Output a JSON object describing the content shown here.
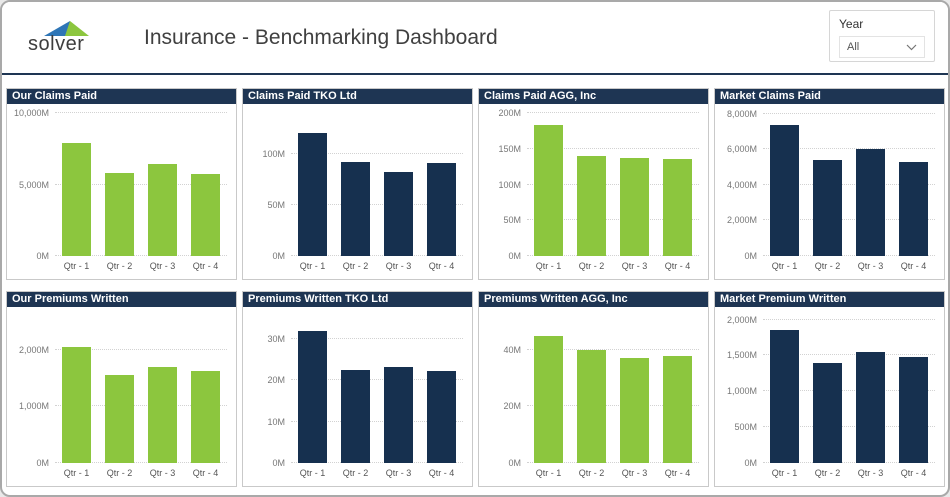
{
  "header": {
    "logo_text": "solver",
    "title": "Insurance - Benchmarking Dashboard",
    "filter": {
      "label": "Year",
      "value": "All"
    }
  },
  "colors": {
    "green": "#8cc63e",
    "navy": "#16304f",
    "header_navy": "#1e3553",
    "logo_blue": "#2e75b6",
    "logo_green": "#8cc63e"
  },
  "chart_data": [
    {
      "type": "bar",
      "title": "Our Claims Paid",
      "color": "green",
      "categories": [
        "Qtr - 1",
        "Qtr - 2",
        "Qtr - 3",
        "Qtr - 4"
      ],
      "values": [
        7900,
        5800,
        6400,
        5750
      ],
      "unit": "M",
      "ylim": [
        0,
        10000
      ],
      "ymax_plot": 10000,
      "grid": true,
      "legend": "none",
      "yticks": [
        {
          "v": 0,
          "label": "0M"
        },
        {
          "v": 5000,
          "label": "5,000M"
        },
        {
          "v": 10000,
          "label": "10,000M"
        }
      ]
    },
    {
      "type": "bar",
      "title": "Claims Paid TKO Ltd",
      "color": "navy",
      "categories": [
        "Qtr - 1",
        "Qtr - 2",
        "Qtr - 3",
        "Qtr - 4"
      ],
      "values": [
        120,
        92,
        82,
        91
      ],
      "unit": "M",
      "ylim": [
        0,
        100
      ],
      "ymax_plot": 140,
      "grid": true,
      "legend": "none",
      "yticks": [
        {
          "v": 0,
          "label": "0M"
        },
        {
          "v": 50,
          "label": "50M"
        },
        {
          "v": 100,
          "label": "100M"
        }
      ]
    },
    {
      "type": "bar",
      "title": "Claims Paid AGG, Inc",
      "color": "green",
      "categories": [
        "Qtr - 1",
        "Qtr - 2",
        "Qtr - 3",
        "Qtr - 4"
      ],
      "values": [
        183,
        140,
        137,
        136
      ],
      "unit": "M",
      "ylim": [
        0,
        200
      ],
      "ymax_plot": 200,
      "grid": true,
      "legend": "none",
      "yticks": [
        {
          "v": 0,
          "label": "0M"
        },
        {
          "v": 50,
          "label": "50M"
        },
        {
          "v": 100,
          "label": "100M"
        },
        {
          "v": 150,
          "label": "150M"
        },
        {
          "v": 200,
          "label": "200M"
        }
      ]
    },
    {
      "type": "bar",
      "title": "Market Claims Paid",
      "color": "navy",
      "categories": [
        "Qtr - 1",
        "Qtr - 2",
        "Qtr - 3",
        "Qtr - 4"
      ],
      "values": [
        7400,
        5400,
        6030,
        5300
      ],
      "unit": "M",
      "ylim": [
        0,
        8000
      ],
      "ymax_plot": 8050,
      "grid": true,
      "legend": "none",
      "yticks": [
        {
          "v": 0,
          "label": "0M"
        },
        {
          "v": 2000,
          "label": "2,000M"
        },
        {
          "v": 4000,
          "label": "4,000M"
        },
        {
          "v": 6000,
          "label": "6,000M"
        },
        {
          "v": 8000,
          "label": "8,000M"
        }
      ]
    },
    {
      "type": "bar",
      "title": "Our Premiums Written",
      "color": "green",
      "categories": [
        "Qtr - 1",
        "Qtr - 2",
        "Qtr - 3",
        "Qtr - 4"
      ],
      "values": [
        2050,
        1560,
        1690,
        1630
      ],
      "unit": "M",
      "ylim": [
        0,
        2000
      ],
      "ymax_plot": 2600,
      "grid": true,
      "legend": "none",
      "yticks": [
        {
          "v": 0,
          "label": "0M"
        },
        {
          "v": 1000,
          "label": "1,000M"
        },
        {
          "v": 2000,
          "label": "2,000M"
        }
      ]
    },
    {
      "type": "bar",
      "title": "Premiums Written TKO Ltd",
      "color": "navy",
      "categories": [
        "Qtr - 1",
        "Qtr - 2",
        "Qtr - 3",
        "Qtr - 4"
      ],
      "values": [
        32,
        22.5,
        23.2,
        22.3
      ],
      "unit": "M",
      "ylim": [
        0,
        30
      ],
      "ymax_plot": 35.5,
      "grid": true,
      "legend": "none",
      "yticks": [
        {
          "v": 0,
          "label": "0M"
        },
        {
          "v": 10,
          "label": "10M"
        },
        {
          "v": 20,
          "label": "20M"
        },
        {
          "v": 30,
          "label": "30M"
        }
      ]
    },
    {
      "type": "bar",
      "title": "Premiums Written AGG, Inc",
      "color": "green",
      "categories": [
        "Qtr - 1",
        "Qtr - 2",
        "Qtr - 3",
        "Qtr - 4"
      ],
      "values": [
        45,
        40,
        37,
        38
      ],
      "unit": "M",
      "ylim": [
        0,
        40
      ],
      "ymax_plot": 52,
      "grid": true,
      "legend": "none",
      "yticks": [
        {
          "v": 0,
          "label": "0M"
        },
        {
          "v": 20,
          "label": "20M"
        },
        {
          "v": 40,
          "label": "40M"
        }
      ]
    },
    {
      "type": "bar",
      "title": "Market Premium Written",
      "color": "navy",
      "categories": [
        "Qtr - 1",
        "Qtr - 2",
        "Qtr - 3",
        "Qtr - 4"
      ],
      "values": [
        1860,
        1400,
        1550,
        1475
      ],
      "unit": "M",
      "ylim": [
        0,
        2000
      ],
      "ymax_plot": 2050,
      "grid": true,
      "legend": "none",
      "yticks": [
        {
          "v": 0,
          "label": "0M"
        },
        {
          "v": 500,
          "label": "500M"
        },
        {
          "v": 1000,
          "label": "1,000M"
        },
        {
          "v": 1500,
          "label": "1,500M"
        },
        {
          "v": 2000,
          "label": "2,000M"
        }
      ]
    }
  ]
}
